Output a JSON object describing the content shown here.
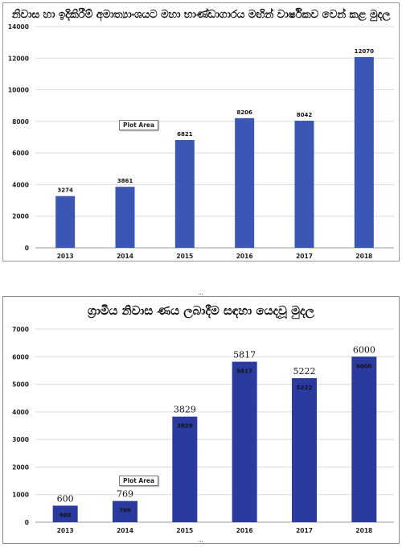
{
  "chart_data": [
    {
      "type": "bar",
      "title": "නිවාස හා ඉදිකිරීම් අමාත්‍යාංශයට මහා භාණ්ඩාගාරය මඟින් වාර්ෂිකව වෙන් කළ මුදල",
      "categories": [
        "2013",
        "2014",
        "2015",
        "2016",
        "2017",
        "2018"
      ],
      "values": [
        3274,
        3861,
        6821,
        8206,
        8042,
        12070
      ],
      "ylim": [
        0,
        14000
      ],
      "yticks": [
        0,
        2000,
        4000,
        6000,
        8000,
        10000,
        12000,
        14000
      ],
      "grid": true,
      "bar_color": "#3a57b5",
      "annotation": "Plot Area"
    },
    {
      "type": "bar",
      "title": "ග්‍රාමීය නිවාස ණය ලබාදීම සඳහා යෙදවූ මුදල",
      "categories": [
        "2013",
        "2014",
        "2015",
        "2016",
        "2017",
        "2018"
      ],
      "values": [
        600,
        769,
        3829,
        5817,
        5222,
        6000
      ],
      "ylim": [
        0,
        7000
      ],
      "yticks": [
        0,
        1000,
        2000,
        3000,
        4000,
        5000,
        6000,
        7000
      ],
      "grid": true,
      "bar_color": "#2b3a9e",
      "annotation": "Plot Area"
    }
  ]
}
